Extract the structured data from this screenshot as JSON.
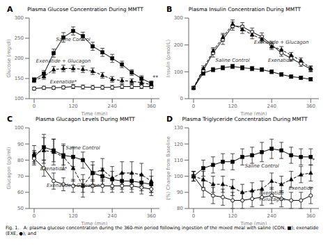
{
  "caption": "Fig. 1.   A: plasma glucose concentration during the 360-min period following ingestion of the mixed meal with saline (CON, ■); exenatide (EXE, ●); and",
  "chart_data": [
    {
      "type": "line",
      "panel": "A",
      "title": "Plasma Glucose Concentration During MMTT",
      "x_label": "Time (min)",
      "y_label": "Glucose (mg/dl)",
      "x": [
        0,
        30,
        60,
        90,
        120,
        150,
        180,
        210,
        240,
        270,
        300,
        330,
        360
      ],
      "xlim": [
        -15,
        385
      ],
      "xticks": [
        0,
        120,
        240,
        360
      ],
      "ylim": [
        100,
        300
      ],
      "yticks": [
        100,
        150,
        200,
        250,
        300
      ],
      "grid": false,
      "annotations": [
        "**"
      ],
      "series": [
        {
          "name": "Saline Control",
          "color": "black",
          "marker": "square",
          "line_style": "solid",
          "values": [
            147,
            162,
            213,
            252,
            268,
            255,
            230,
            215,
            200,
            185,
            165,
            150,
            138
          ],
          "error": [
            5,
            8,
            10,
            12,
            10,
            10,
            10,
            10,
            10,
            8,
            7,
            7,
            6
          ]
        },
        {
          "name": "Exenatide*",
          "color": "black",
          "marker": "circle",
          "line_style": "solid",
          "values": [
            125,
            127,
            127,
            128,
            130,
            129,
            128,
            128,
            128,
            130,
            130,
            130,
            130
          ],
          "error": [
            4,
            4,
            4,
            4,
            5,
            5,
            5,
            5,
            5,
            5,
            5,
            5,
            5
          ]
        },
        {
          "name": "Exenatide + Glucagon",
          "color": "black",
          "marker": "triangle",
          "line_style": "dashed",
          "values": [
            145,
            155,
            172,
            175,
            175,
            173,
            168,
            158,
            148,
            145,
            143,
            140,
            135
          ],
          "error": [
            5,
            7,
            8,
            8,
            8,
            8,
            8,
            7,
            7,
            7,
            6,
            6,
            6
          ]
        }
      ]
    },
    {
      "type": "line",
      "panel": "B",
      "title": "Plasma Insulin Concentration During MMTT",
      "x_label": "Time (min)",
      "y_label": "Insulin (pmol/L)",
      "x": [
        0,
        30,
        60,
        90,
        120,
        150,
        180,
        210,
        240,
        270,
        300,
        330,
        360
      ],
      "xlim": [
        -15,
        385
      ],
      "xticks": [
        0,
        120,
        240,
        360
      ],
      "ylim": [
        0,
        300
      ],
      "yticks": [
        0,
        100,
        200,
        300
      ],
      "grid": false,
      "series": [
        {
          "name": "Saline Control",
          "color": "black",
          "marker": "square",
          "line_style": "solid",
          "values": [
            40,
            95,
            108,
            115,
            120,
            115,
            112,
            108,
            100,
            90,
            82,
            78,
            72
          ],
          "error": [
            5,
            8,
            8,
            8,
            8,
            8,
            8,
            7,
            7,
            7,
            6,
            6,
            6
          ]
        },
        {
          "name": "Exenatide*",
          "color": "black",
          "marker": "circle",
          "line_style": "solid",
          "values": [
            40,
            105,
            170,
            220,
            270,
            268,
            248,
            230,
            200,
            170,
            150,
            130,
            110
          ],
          "error": [
            5,
            10,
            15,
            18,
            15,
            15,
            15,
            15,
            12,
            12,
            10,
            10,
            10
          ]
        },
        {
          "name": "Exenatide + Glucagon",
          "color": "black",
          "marker": "triangle",
          "line_style": "dashed",
          "values": [
            40,
            112,
            178,
            228,
            278,
            258,
            238,
            222,
            195,
            182,
            162,
            142,
            112
          ],
          "error": [
            5,
            10,
            12,
            15,
            15,
            15,
            15,
            12,
            12,
            12,
            10,
            10,
            10
          ]
        }
      ]
    },
    {
      "type": "line",
      "panel": "C",
      "title": "Plasma Glucagon Levels During MMTT",
      "x_label": "Time (min)",
      "y_label": "Glucagon (pg/ml)",
      "x": [
        0,
        30,
        60,
        90,
        120,
        150,
        180,
        210,
        240,
        270,
        300,
        330,
        360
      ],
      "xlim": [
        -15,
        385
      ],
      "xticks": [
        0,
        120,
        240,
        360
      ],
      "ylim": [
        50,
        100
      ],
      "yticks": [
        50,
        60,
        70,
        80,
        90,
        100
      ],
      "grid": false,
      "series": [
        {
          "name": "Saline Control",
          "color": "black",
          "marker": "square",
          "line_style": "solid",
          "values": [
            82,
            88,
            86,
            83,
            82,
            80,
            72,
            70,
            68,
            67,
            67,
            66,
            65
          ],
          "error": [
            4,
            8,
            7,
            6,
            6,
            5,
            5,
            5,
            5,
            5,
            5,
            5,
            5
          ]
        },
        {
          "name": "Exenatide*",
          "color": "black",
          "marker": "circle",
          "line_style": "solid",
          "values": [
            81,
            75,
            67,
            65,
            64,
            64,
            64,
            64,
            64,
            64,
            64,
            63,
            62
          ],
          "error": [
            4,
            5,
            5,
            4,
            4,
            4,
            4,
            4,
            4,
            4,
            4,
            4,
            4
          ]
        },
        {
          "name": "Exenatide +Glucagon",
          "color": "black",
          "marker": "triangle",
          "line_style": "dashed",
          "values": [
            84,
            86,
            85,
            82,
            75,
            64,
            72,
            74,
            69,
            72,
            72,
            71,
            67
          ],
          "error": [
            5,
            8,
            8,
            8,
            8,
            7,
            7,
            7,
            7,
            7,
            7,
            7,
            7
          ]
        }
      ]
    },
    {
      "type": "line",
      "panel": "D",
      "title": "Plasma Triglyceride Concentration During MMTT",
      "x_label": "Time (min)",
      "y_label": "(%) Change from Baseline",
      "x": [
        0,
        30,
        60,
        90,
        120,
        150,
        180,
        210,
        240,
        270,
        300,
        330,
        360
      ],
      "xlim": [
        -15,
        385
      ],
      "xticks": [
        0,
        120,
        240,
        360
      ],
      "ylim": [
        80,
        130
      ],
      "yticks": [
        80,
        90,
        100,
        110,
        120,
        130
      ],
      "grid": false,
      "annotations": [
        "*"
      ],
      "series": [
        {
          "name": "Saline Control",
          "color": "black",
          "marker": "square",
          "line_style": "solid",
          "values": [
            100,
            105,
            107,
            109,
            109,
            112,
            113,
            115,
            117,
            116,
            113,
            112,
            112
          ],
          "error": [
            3,
            5,
            5,
            5,
            5,
            5,
            5,
            6,
            6,
            5,
            5,
            5,
            5
          ]
        },
        {
          "name": "Exenatide",
          "color": "black",
          "marker": "circle",
          "line_style": "solid",
          "values": [
            100,
            92,
            88,
            87,
            85,
            85,
            86,
            87,
            88,
            86,
            85,
            85,
            88
          ],
          "error": [
            3,
            5,
            5,
            5,
            5,
            5,
            5,
            5,
            5,
            5,
            5,
            5,
            5
          ]
        },
        {
          "name": "Exenatide\n+Glucagon",
          "color": "black",
          "marker": "triangle",
          "line_style": "dashed",
          "values": [
            100,
            98,
            95,
            95,
            93,
            90,
            91,
            92,
            97,
            95,
            98,
            101,
            102
          ],
          "error": [
            3,
            5,
            5,
            5,
            5,
            5,
            5,
            5,
            5,
            5,
            5,
            5,
            5
          ]
        }
      ]
    }
  ]
}
